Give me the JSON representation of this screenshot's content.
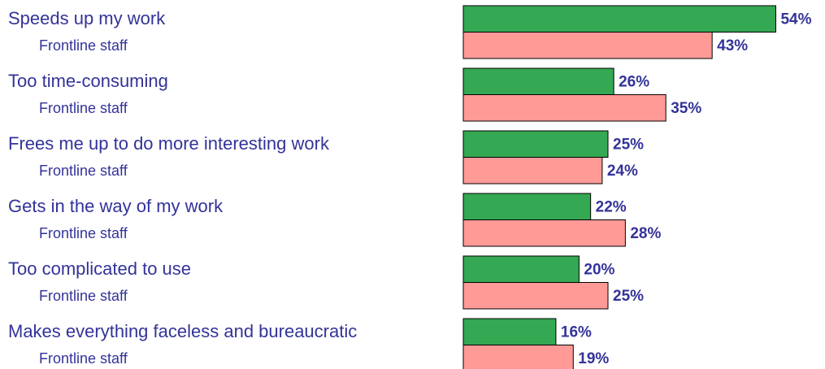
{
  "chart_data": {
    "type": "bar",
    "orientation": "horizontal",
    "categories": [
      "Speeds up my work",
      "Too time-consuming",
      "Frees me up to do more interesting work",
      "Gets in the way of my work",
      "Too complicated to use",
      "Makes everything faceless and bureaucratic"
    ],
    "series": [
      {
        "color": "#34a853",
        "values": [
          54,
          26,
          25,
          22,
          20,
          16
        ],
        "value_labels": [
          "54%",
          "26%",
          "25%",
          "22%",
          "20%",
          "16%"
        ]
      },
      {
        "name": "Frontline staff",
        "color": "#ff9a97",
        "values": [
          43,
          35,
          24,
          28,
          25,
          19
        ],
        "value_labels": [
          "43%",
          "35%",
          "24%",
          "28%",
          "25%",
          "19%"
        ]
      }
    ]
  }
}
